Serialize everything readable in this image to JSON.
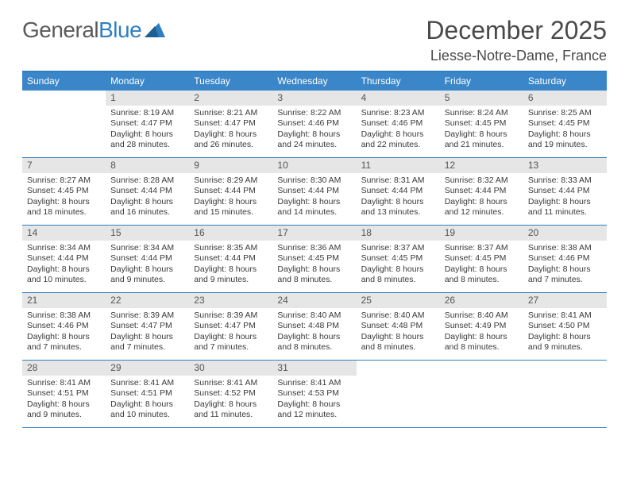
{
  "brand": {
    "part1": "General",
    "part2": "Blue"
  },
  "title": "December 2025",
  "location": "Liesse-Notre-Dame, France",
  "colors": {
    "header_bar": "#3a86c8",
    "rule": "#2f7fc0",
    "daynum_bg": "#e6e6e6",
    "text": "#3a3a3a",
    "title_text": "#4a4a4a"
  },
  "typography": {
    "title_fontsize": 32,
    "location_fontsize": 18,
    "dow_fontsize": 12,
    "body_fontsize": 10.5
  },
  "days_of_week": [
    "Sunday",
    "Monday",
    "Tuesday",
    "Wednesday",
    "Thursday",
    "Friday",
    "Saturday"
  ],
  "weeks": [
    [
      {
        "n": "",
        "sunrise": "",
        "sunset": "",
        "daylight1": "",
        "daylight2": ""
      },
      {
        "n": "1",
        "sunrise": "Sunrise: 8:19 AM",
        "sunset": "Sunset: 4:47 PM",
        "daylight1": "Daylight: 8 hours",
        "daylight2": "and 28 minutes."
      },
      {
        "n": "2",
        "sunrise": "Sunrise: 8:21 AM",
        "sunset": "Sunset: 4:47 PM",
        "daylight1": "Daylight: 8 hours",
        "daylight2": "and 26 minutes."
      },
      {
        "n": "3",
        "sunrise": "Sunrise: 8:22 AM",
        "sunset": "Sunset: 4:46 PM",
        "daylight1": "Daylight: 8 hours",
        "daylight2": "and 24 minutes."
      },
      {
        "n": "4",
        "sunrise": "Sunrise: 8:23 AM",
        "sunset": "Sunset: 4:46 PM",
        "daylight1": "Daylight: 8 hours",
        "daylight2": "and 22 minutes."
      },
      {
        "n": "5",
        "sunrise": "Sunrise: 8:24 AM",
        "sunset": "Sunset: 4:45 PM",
        "daylight1": "Daylight: 8 hours",
        "daylight2": "and 21 minutes."
      },
      {
        "n": "6",
        "sunrise": "Sunrise: 8:25 AM",
        "sunset": "Sunset: 4:45 PM",
        "daylight1": "Daylight: 8 hours",
        "daylight2": "and 19 minutes."
      }
    ],
    [
      {
        "n": "7",
        "sunrise": "Sunrise: 8:27 AM",
        "sunset": "Sunset: 4:45 PM",
        "daylight1": "Daylight: 8 hours",
        "daylight2": "and 18 minutes."
      },
      {
        "n": "8",
        "sunrise": "Sunrise: 8:28 AM",
        "sunset": "Sunset: 4:44 PM",
        "daylight1": "Daylight: 8 hours",
        "daylight2": "and 16 minutes."
      },
      {
        "n": "9",
        "sunrise": "Sunrise: 8:29 AM",
        "sunset": "Sunset: 4:44 PM",
        "daylight1": "Daylight: 8 hours",
        "daylight2": "and 15 minutes."
      },
      {
        "n": "10",
        "sunrise": "Sunrise: 8:30 AM",
        "sunset": "Sunset: 4:44 PM",
        "daylight1": "Daylight: 8 hours",
        "daylight2": "and 14 minutes."
      },
      {
        "n": "11",
        "sunrise": "Sunrise: 8:31 AM",
        "sunset": "Sunset: 4:44 PM",
        "daylight1": "Daylight: 8 hours",
        "daylight2": "and 13 minutes."
      },
      {
        "n": "12",
        "sunrise": "Sunrise: 8:32 AM",
        "sunset": "Sunset: 4:44 PM",
        "daylight1": "Daylight: 8 hours",
        "daylight2": "and 12 minutes."
      },
      {
        "n": "13",
        "sunrise": "Sunrise: 8:33 AM",
        "sunset": "Sunset: 4:44 PM",
        "daylight1": "Daylight: 8 hours",
        "daylight2": "and 11 minutes."
      }
    ],
    [
      {
        "n": "14",
        "sunrise": "Sunrise: 8:34 AM",
        "sunset": "Sunset: 4:44 PM",
        "daylight1": "Daylight: 8 hours",
        "daylight2": "and 10 minutes."
      },
      {
        "n": "15",
        "sunrise": "Sunrise: 8:34 AM",
        "sunset": "Sunset: 4:44 PM",
        "daylight1": "Daylight: 8 hours",
        "daylight2": "and 9 minutes."
      },
      {
        "n": "16",
        "sunrise": "Sunrise: 8:35 AM",
        "sunset": "Sunset: 4:44 PM",
        "daylight1": "Daylight: 8 hours",
        "daylight2": "and 9 minutes."
      },
      {
        "n": "17",
        "sunrise": "Sunrise: 8:36 AM",
        "sunset": "Sunset: 4:45 PM",
        "daylight1": "Daylight: 8 hours",
        "daylight2": "and 8 minutes."
      },
      {
        "n": "18",
        "sunrise": "Sunrise: 8:37 AM",
        "sunset": "Sunset: 4:45 PM",
        "daylight1": "Daylight: 8 hours",
        "daylight2": "and 8 minutes."
      },
      {
        "n": "19",
        "sunrise": "Sunrise: 8:37 AM",
        "sunset": "Sunset: 4:45 PM",
        "daylight1": "Daylight: 8 hours",
        "daylight2": "and 8 minutes."
      },
      {
        "n": "20",
        "sunrise": "Sunrise: 8:38 AM",
        "sunset": "Sunset: 4:46 PM",
        "daylight1": "Daylight: 8 hours",
        "daylight2": "and 7 minutes."
      }
    ],
    [
      {
        "n": "21",
        "sunrise": "Sunrise: 8:38 AM",
        "sunset": "Sunset: 4:46 PM",
        "daylight1": "Daylight: 8 hours",
        "daylight2": "and 7 minutes."
      },
      {
        "n": "22",
        "sunrise": "Sunrise: 8:39 AM",
        "sunset": "Sunset: 4:47 PM",
        "daylight1": "Daylight: 8 hours",
        "daylight2": "and 7 minutes."
      },
      {
        "n": "23",
        "sunrise": "Sunrise: 8:39 AM",
        "sunset": "Sunset: 4:47 PM",
        "daylight1": "Daylight: 8 hours",
        "daylight2": "and 7 minutes."
      },
      {
        "n": "24",
        "sunrise": "Sunrise: 8:40 AM",
        "sunset": "Sunset: 4:48 PM",
        "daylight1": "Daylight: 8 hours",
        "daylight2": "and 8 minutes."
      },
      {
        "n": "25",
        "sunrise": "Sunrise: 8:40 AM",
        "sunset": "Sunset: 4:48 PM",
        "daylight1": "Daylight: 8 hours",
        "daylight2": "and 8 minutes."
      },
      {
        "n": "26",
        "sunrise": "Sunrise: 8:40 AM",
        "sunset": "Sunset: 4:49 PM",
        "daylight1": "Daylight: 8 hours",
        "daylight2": "and 8 minutes."
      },
      {
        "n": "27",
        "sunrise": "Sunrise: 8:41 AM",
        "sunset": "Sunset: 4:50 PM",
        "daylight1": "Daylight: 8 hours",
        "daylight2": "and 9 minutes."
      }
    ],
    [
      {
        "n": "28",
        "sunrise": "Sunrise: 8:41 AM",
        "sunset": "Sunset: 4:51 PM",
        "daylight1": "Daylight: 8 hours",
        "daylight2": "and 9 minutes."
      },
      {
        "n": "29",
        "sunrise": "Sunrise: 8:41 AM",
        "sunset": "Sunset: 4:51 PM",
        "daylight1": "Daylight: 8 hours",
        "daylight2": "and 10 minutes."
      },
      {
        "n": "30",
        "sunrise": "Sunrise: 8:41 AM",
        "sunset": "Sunset: 4:52 PM",
        "daylight1": "Daylight: 8 hours",
        "daylight2": "and 11 minutes."
      },
      {
        "n": "31",
        "sunrise": "Sunrise: 8:41 AM",
        "sunset": "Sunset: 4:53 PM",
        "daylight1": "Daylight: 8 hours",
        "daylight2": "and 12 minutes."
      },
      {
        "n": "",
        "sunrise": "",
        "sunset": "",
        "daylight1": "",
        "daylight2": ""
      },
      {
        "n": "",
        "sunrise": "",
        "sunset": "",
        "daylight1": "",
        "daylight2": ""
      },
      {
        "n": "",
        "sunrise": "",
        "sunset": "",
        "daylight1": "",
        "daylight2": ""
      }
    ]
  ]
}
